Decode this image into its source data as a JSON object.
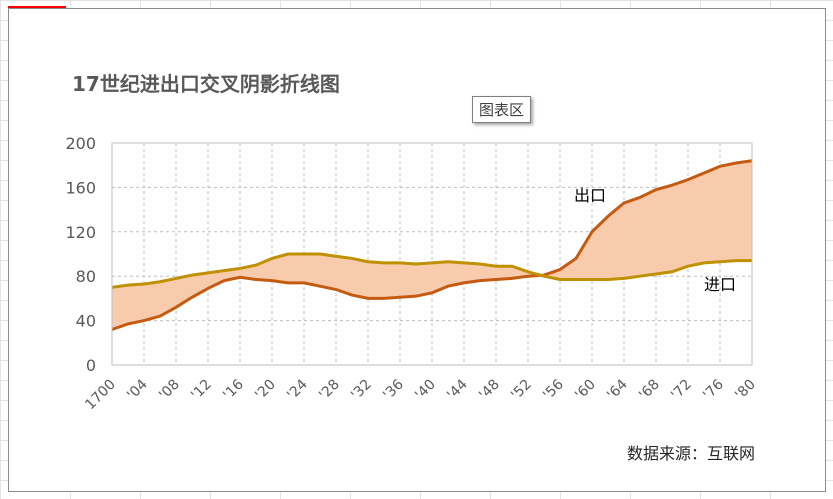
{
  "chart_data": {
    "type": "area",
    "title": "17世纪进出口交叉阴影折线图",
    "x": [
      1700,
      1702,
      1704,
      1706,
      1708,
      1710,
      1712,
      1714,
      1716,
      1718,
      1720,
      1722,
      1724,
      1726,
      1728,
      1730,
      1732,
      1734,
      1736,
      1738,
      1740,
      1742,
      1744,
      1746,
      1748,
      1750,
      1752,
      1754,
      1756,
      1758,
      1760,
      1762,
      1764,
      1766,
      1768,
      1770,
      1772,
      1774,
      1776,
      1778,
      1780
    ],
    "x_tick_labels": [
      "1700",
      "'04",
      "'08",
      "'12",
      "'16",
      "'20",
      "'24",
      "'28",
      "'32",
      "'36",
      "'40",
      "'44",
      "'48",
      "'52",
      "'56",
      "'60",
      "'64",
      "'68",
      "'72",
      "'76",
      "'80"
    ],
    "series": [
      {
        "name": "出口",
        "color": "#c55a11",
        "values": [
          32,
          37,
          40,
          44,
          52,
          61,
          69,
          76,
          79,
          77,
          76,
          74,
          74,
          71,
          68,
          63,
          60,
          60,
          61,
          62,
          65,
          71,
          74,
          76,
          77,
          78,
          80,
          81,
          86,
          96,
          120,
          134,
          146,
          151,
          158,
          162,
          167,
          173,
          179,
          182,
          184
        ]
      },
      {
        "name": "进口",
        "color": "#bf9000",
        "values": [
          70,
          72,
          73,
          75,
          78,
          81,
          83,
          85,
          87,
          90,
          96,
          100,
          100,
          100,
          98,
          96,
          93,
          92,
          92,
          91,
          92,
          93,
          92,
          91,
          89,
          89,
          84,
          80,
          77,
          77,
          77,
          77,
          78,
          80,
          82,
          84,
          89,
          92,
          93,
          94,
          94
        ]
      }
    ],
    "fill_between_color": "#f8cbad",
    "ylim": [
      0,
      200
    ],
    "yticks": [
      "0",
      "40",
      "80",
      "120",
      "160",
      "200"
    ],
    "grid": true,
    "annotations": {
      "tooltip": "图表区",
      "source": "数据来源：互联网"
    }
  }
}
